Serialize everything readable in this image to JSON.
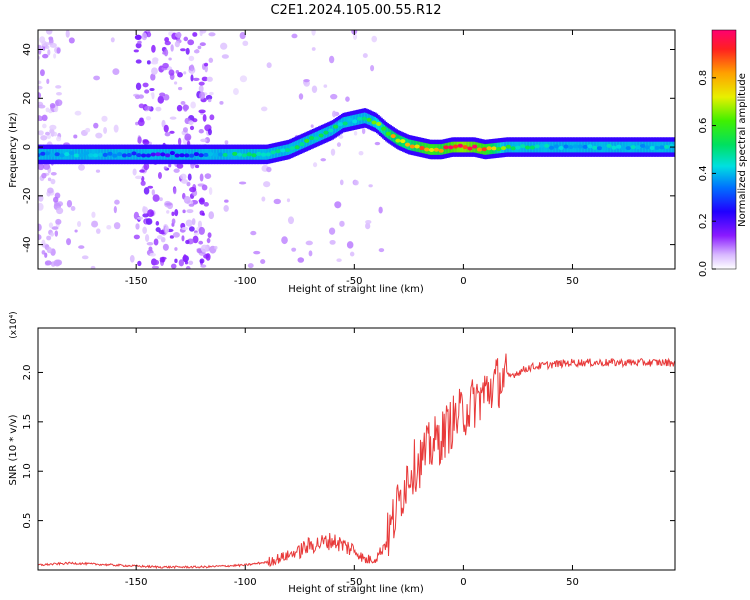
{
  "figure": {
    "title": "C2E1.2024.105.00.55.R12"
  },
  "chart_data": [
    {
      "type": "heatmap",
      "xlabel": "Height of straight line (km)",
      "ylabel": "Frequency (Hz)",
      "xlim": [
        -195,
        97
      ],
      "ylim": [
        -50,
        48
      ],
      "xticks": [
        -150,
        -100,
        -50,
        0,
        50
      ],
      "yticks": [
        -40,
        -20,
        0,
        20,
        40
      ],
      "colorbar": {
        "label": "Normalized spectral amplitude",
        "range": [
          0.0,
          1.0
        ],
        "ticks": [
          0.0,
          0.2,
          0.4,
          0.6,
          0.8
        ],
        "colormap": [
          "#ffffff",
          "#c9a0ff",
          "#7b00ff",
          "#1a00ff",
          "#00a0ff",
          "#00f0d0",
          "#10e020",
          "#e0f000",
          "#ffb000",
          "#ff3000",
          "#ff0060"
        ]
      },
      "ridge": {
        "description_free": true,
        "x": [
          -195,
          -180,
          -160,
          -140,
          -130,
          -120,
          -110,
          -100,
          -90,
          -80,
          -70,
          -60,
          -55,
          -50,
          -45,
          -40,
          -35,
          -30,
          -25,
          -20,
          -15,
          -10,
          -5,
          0,
          5,
          10,
          20,
          40,
          60,
          80,
          97
        ],
        "y": [
          -3,
          -3,
          -3,
          -3,
          -3,
          -3,
          -3,
          -3,
          -3,
          -1,
          3,
          7,
          10,
          11,
          12,
          10,
          6,
          3,
          1,
          0,
          -1,
          -1,
          0,
          0,
          0,
          -1,
          0,
          0,
          0,
          0,
          0
        ],
        "amplitude": [
          0.3,
          0.4,
          0.35,
          0.2,
          0.25,
          0.3,
          0.45,
          0.5,
          0.4,
          0.5,
          0.55,
          0.5,
          0.45,
          0.45,
          0.5,
          0.6,
          0.7,
          0.75,
          0.7,
          0.8,
          0.85,
          0.8,
          0.9,
          0.95,
          0.9,
          0.85,
          0.55,
          0.4,
          0.4,
          0.4,
          0.4
        ]
      }
    },
    {
      "type": "line",
      "xlabel": "Height of straight line (km)",
      "ylabel": "SNR (10 * v/v)",
      "yscale_label": "(x10⁴)",
      "xlim": [
        -195,
        97
      ],
      "ylim": [
        0,
        2.45
      ],
      "xticks": [
        -150,
        -100,
        -50,
        0,
        50
      ],
      "yticks": [
        0.5,
        1.0,
        1.5,
        2.0
      ],
      "ytick_labels": [
        "0.5",
        "1.0",
        "1.5",
        "2.0"
      ],
      "series": [
        {
          "color": "#e83a3a",
          "x": [
            -195,
            -180,
            -160,
            -140,
            -120,
            -100,
            -90,
            -80,
            -70,
            -60,
            -50,
            -45,
            -40,
            -35,
            -30,
            -25,
            -20,
            -15,
            -10,
            -5,
            0,
            5,
            10,
            15,
            20,
            25,
            30,
            40,
            50,
            60,
            70,
            80,
            90,
            97
          ],
          "y": [
            0.05,
            0.07,
            0.05,
            0.03,
            0.03,
            0.05,
            0.08,
            0.15,
            0.25,
            0.3,
            0.2,
            0.1,
            0.12,
            0.3,
            0.65,
            1.0,
            1.1,
            1.25,
            1.35,
            1.5,
            1.6,
            1.7,
            1.8,
            1.9,
            1.95,
            2.0,
            2.05,
            2.08,
            2.1,
            2.1,
            2.1,
            2.1,
            2.1,
            2.1
          ]
        }
      ]
    }
  ]
}
